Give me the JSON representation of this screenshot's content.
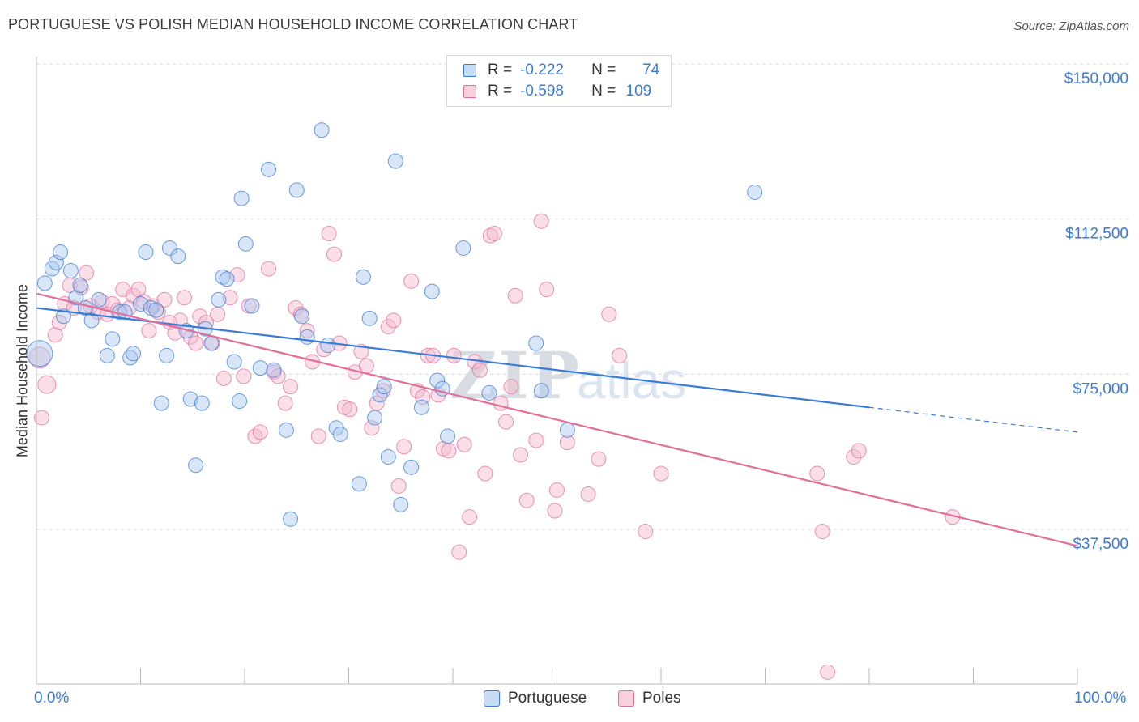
{
  "title": "PORTUGUESE VS POLISH MEDIAN HOUSEHOLD INCOME CORRELATION CHART",
  "source": "Source: ZipAtlas.com",
  "colors": {
    "blue": "#3a7bd5",
    "blue_fill": "#a9c8ef",
    "pink": "#e0709a",
    "pink_fill": "#f5b8cc",
    "grid": "#d9d9d9",
    "axis_text": "#3a7bd5"
  },
  "legend": {
    "rows": [
      {
        "r_label": "R =",
        "r_value": "-0.222",
        "n_label": "N =",
        "n_value": "74",
        "color": "#3a7bd5"
      },
      {
        "r_label": "R =",
        "r_value": "-0.598",
        "n_label": "N =",
        "n_value": "109",
        "color": "#e0709a"
      }
    ]
  },
  "bottom_legend": {
    "items": [
      {
        "label": "Portuguese",
        "color": "#3a7bd5"
      },
      {
        "label": "Poles",
        "color": "#e0709a"
      }
    ]
  },
  "chart_data": {
    "type": "scatter",
    "ylabel": "Median Household Income",
    "x_tick_labels": [
      "0.0%",
      "100.0%"
    ],
    "y_tick_labels": [
      "$150,000",
      "$112,500",
      "$75,000",
      "$37,500"
    ],
    "y_ticks": [
      150000,
      112500,
      75000,
      37500
    ],
    "xlim": [
      0,
      100
    ],
    "ylim": [
      0,
      155000
    ],
    "grid": true,
    "legend_position": "top-center",
    "watermark": "ZIPatlas",
    "series": [
      {
        "name": "Portuguese",
        "color": "#3a7bd5",
        "trend": {
          "x0": 0,
          "y0": 91000,
          "x1": 80,
          "y1": 67000,
          "dashed_to_x": 100,
          "dashed_to_y": 61000
        },
        "points": [
          [
            0.3,
            80000,
            16
          ],
          [
            0.8,
            97000,
            9
          ],
          [
            1.5,
            100500,
            9
          ],
          [
            1.9,
            102000,
            9
          ],
          [
            2.3,
            104500,
            9
          ],
          [
            2.6,
            89000,
            9
          ],
          [
            3.3,
            100000,
            9
          ],
          [
            3.8,
            93500,
            9
          ],
          [
            4.2,
            96500,
            9
          ],
          [
            4.7,
            91000,
            9
          ],
          [
            5.3,
            88000,
            9
          ],
          [
            6.0,
            93000,
            9
          ],
          [
            6.8,
            79500,
            9
          ],
          [
            7.3,
            83500,
            9
          ],
          [
            8.0,
            90000,
            9
          ],
          [
            8.5,
            90000,
            9
          ],
          [
            9.0,
            79000,
            9
          ],
          [
            9.3,
            80000,
            9
          ],
          [
            10.0,
            92000,
            9
          ],
          [
            10.5,
            104500,
            9
          ],
          [
            11.0,
            91000,
            9
          ],
          [
            11.5,
            90500,
            9
          ],
          [
            12.0,
            68000,
            9
          ],
          [
            12.5,
            79500,
            9
          ],
          [
            12.8,
            105500,
            9
          ],
          [
            13.6,
            103500,
            9
          ],
          [
            14.4,
            85500,
            9
          ],
          [
            14.8,
            69000,
            9
          ],
          [
            15.3,
            53000,
            9
          ],
          [
            15.9,
            68000,
            9
          ],
          [
            16.2,
            86000,
            9
          ],
          [
            16.8,
            82500,
            9
          ],
          [
            17.5,
            93000,
            9
          ],
          [
            17.9,
            98500,
            9
          ],
          [
            18.3,
            98000,
            9
          ],
          [
            19.0,
            78000,
            9
          ],
          [
            19.5,
            68500,
            9
          ],
          [
            19.7,
            117500,
            9
          ],
          [
            20.1,
            106500,
            9
          ],
          [
            20.7,
            91500,
            9
          ],
          [
            21.5,
            76500,
            9
          ],
          [
            22.3,
            124500,
            9
          ],
          [
            22.8,
            76000,
            9
          ],
          [
            24.0,
            61500,
            9
          ],
          [
            24.4,
            40000,
            9
          ],
          [
            25.0,
            119500,
            9
          ],
          [
            25.5,
            89000,
            9
          ],
          [
            26.0,
            84000,
            9
          ],
          [
            27.4,
            134000,
            9
          ],
          [
            28.0,
            82000,
            9
          ],
          [
            28.8,
            62000,
            9
          ],
          [
            29.2,
            60500,
            9
          ],
          [
            31.0,
            48500,
            9
          ],
          [
            31.4,
            98500,
            9
          ],
          [
            32.0,
            88500,
            9
          ],
          [
            32.5,
            64500,
            9
          ],
          [
            33.0,
            70000,
            9
          ],
          [
            33.4,
            72000,
            9
          ],
          [
            33.8,
            55000,
            9
          ],
          [
            34.5,
            126500,
            9
          ],
          [
            35.0,
            43500,
            9
          ],
          [
            36.0,
            52500,
            9
          ],
          [
            37.0,
            67000,
            9
          ],
          [
            38.0,
            95000,
            9
          ],
          [
            38.5,
            73500,
            9
          ],
          [
            39.0,
            71500,
            9
          ],
          [
            39.5,
            60000,
            9
          ],
          [
            41.0,
            105500,
            9
          ],
          [
            43.5,
            70500,
            9
          ],
          [
            48.0,
            82500,
            9
          ],
          [
            48.5,
            71000,
            9
          ],
          [
            51.0,
            61500,
            9
          ],
          [
            69.0,
            119000,
            9
          ],
          [
            63.5,
            52000,
            0
          ]
        ]
      },
      {
        "name": "Poles",
        "color": "#e0709a",
        "trend": {
          "x0": 0,
          "y0": 94500,
          "x1": 100,
          "y1": 33500
        },
        "points": [
          [
            0.3,
            79000,
            13
          ],
          [
            0.5,
            64500,
            9
          ],
          [
            1.0,
            72500,
            11
          ],
          [
            1.8,
            84500,
            9
          ],
          [
            2.2,
            87500,
            9
          ],
          [
            2.7,
            92000,
            9
          ],
          [
            3.2,
            96500,
            9
          ],
          [
            3.6,
            91000,
            9
          ],
          [
            4.3,
            96000,
            9
          ],
          [
            4.8,
            99500,
            9
          ],
          [
            5.2,
            91500,
            9
          ],
          [
            5.9,
            90000,
            9
          ],
          [
            6.3,
            92500,
            9
          ],
          [
            6.8,
            89500,
            9
          ],
          [
            7.3,
            92000,
            9
          ],
          [
            7.8,
            90500,
            9
          ],
          [
            8.3,
            95500,
            9
          ],
          [
            8.9,
            91000,
            9
          ],
          [
            9.3,
            94000,
            9
          ],
          [
            9.8,
            95500,
            9
          ],
          [
            10.3,
            92500,
            9
          ],
          [
            10.8,
            85500,
            9
          ],
          [
            11.2,
            91500,
            9
          ],
          [
            11.7,
            90000,
            9
          ],
          [
            12.3,
            93000,
            9
          ],
          [
            12.8,
            87500,
            9
          ],
          [
            13.3,
            85000,
            9
          ],
          [
            13.8,
            88000,
            9
          ],
          [
            14.2,
            93500,
            9
          ],
          [
            14.8,
            84000,
            9
          ],
          [
            15.3,
            82500,
            9
          ],
          [
            15.7,
            89000,
            9
          ],
          [
            16.3,
            87500,
            9
          ],
          [
            16.9,
            82500,
            9
          ],
          [
            17.4,
            89500,
            9
          ],
          [
            18.0,
            74000,
            9
          ],
          [
            18.6,
            93500,
            9
          ],
          [
            19.3,
            99000,
            9
          ],
          [
            19.9,
            74500,
            9
          ],
          [
            20.4,
            91500,
            9
          ],
          [
            21.0,
            60000,
            9
          ],
          [
            21.5,
            61000,
            9
          ],
          [
            22.3,
            100500,
            9
          ],
          [
            22.8,
            75500,
            9
          ],
          [
            23.2,
            74500,
            9
          ],
          [
            23.9,
            68000,
            9
          ],
          [
            24.4,
            72000,
            9
          ],
          [
            24.9,
            91000,
            9
          ],
          [
            25.4,
            89500,
            9
          ],
          [
            26.0,
            85500,
            9
          ],
          [
            26.5,
            78000,
            9
          ],
          [
            27.1,
            60000,
            9
          ],
          [
            27.6,
            81000,
            9
          ],
          [
            28.1,
            109000,
            9
          ],
          [
            28.6,
            104000,
            9
          ],
          [
            29.1,
            82500,
            9
          ],
          [
            29.6,
            67000,
            9
          ],
          [
            30.1,
            66500,
            9
          ],
          [
            30.6,
            75500,
            9
          ],
          [
            31.2,
            80500,
            9
          ],
          [
            31.7,
            77000,
            9
          ],
          [
            32.2,
            62000,
            9
          ],
          [
            32.7,
            68000,
            9
          ],
          [
            33.3,
            71000,
            9
          ],
          [
            33.8,
            86500,
            9
          ],
          [
            34.3,
            88000,
            9
          ],
          [
            34.8,
            48000,
            9
          ],
          [
            35.3,
            57500,
            9
          ],
          [
            36.0,
            97500,
            9
          ],
          [
            36.6,
            71000,
            9
          ],
          [
            37.1,
            69500,
            9
          ],
          [
            37.6,
            79500,
            9
          ],
          [
            38.1,
            79500,
            9
          ],
          [
            38.6,
            70000,
            9
          ],
          [
            39.1,
            57000,
            9
          ],
          [
            39.6,
            56500,
            9
          ],
          [
            40.1,
            79500,
            9
          ],
          [
            40.6,
            32000,
            9
          ],
          [
            41.1,
            58000,
            9
          ],
          [
            41.6,
            40500,
            9
          ],
          [
            42.1,
            78000,
            9
          ],
          [
            42.6,
            76000,
            9
          ],
          [
            43.1,
            51000,
            9
          ],
          [
            43.6,
            108500,
            9
          ],
          [
            44.0,
            109000,
            9
          ],
          [
            44.6,
            68000,
            9
          ],
          [
            45.1,
            63500,
            9
          ],
          [
            45.6,
            72000,
            9
          ],
          [
            46.0,
            94000,
            9
          ],
          [
            46.5,
            55500,
            9
          ],
          [
            47.1,
            44500,
            9
          ],
          [
            48.0,
            59000,
            9
          ],
          [
            48.5,
            112000,
            9
          ],
          [
            49.0,
            95500,
            9
          ],
          [
            51.0,
            58500,
            9
          ],
          [
            50.0,
            47000,
            9
          ],
          [
            49.8,
            42000,
            9
          ],
          [
            53.0,
            46000,
            9
          ],
          [
            54.0,
            54500,
            9
          ],
          [
            56.0,
            79500,
            9
          ],
          [
            55.0,
            89500,
            9
          ],
          [
            60.0,
            51000,
            9
          ],
          [
            67.0,
            33000,
            0
          ],
          [
            70.0,
            50500,
            0
          ],
          [
            75.0,
            51000,
            9
          ],
          [
            75.5,
            37000,
            9
          ],
          [
            78.5,
            55000,
            9
          ],
          [
            79.0,
            56500,
            9
          ],
          [
            88.0,
            40500,
            9
          ],
          [
            76.0,
            3000,
            9
          ],
          [
            58.5,
            37000,
            9
          ]
        ]
      }
    ]
  }
}
